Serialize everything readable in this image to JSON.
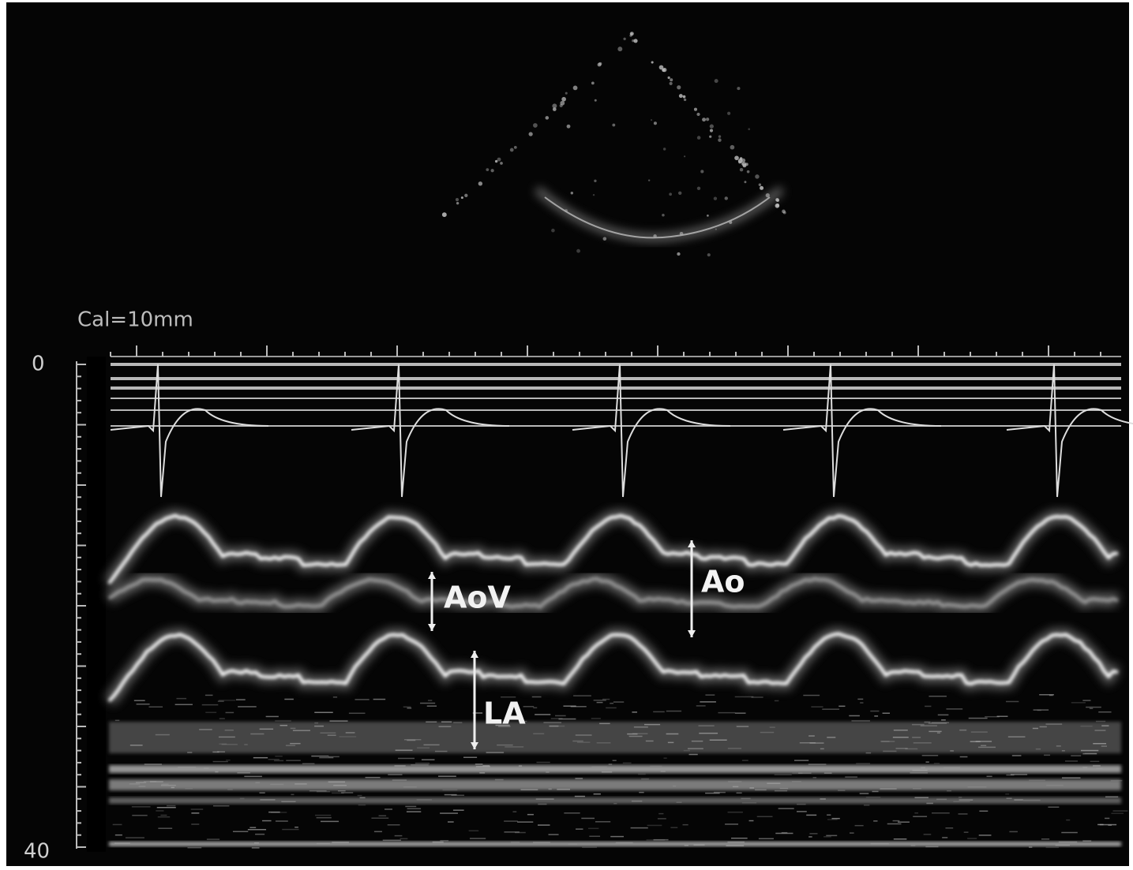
{
  "calibration": "Cal=10mm",
  "depth_scale": {
    "top": "0",
    "bottom": "40"
  },
  "labels": {
    "aov": "AoV",
    "ao": "Ao",
    "la": "LA"
  }
}
